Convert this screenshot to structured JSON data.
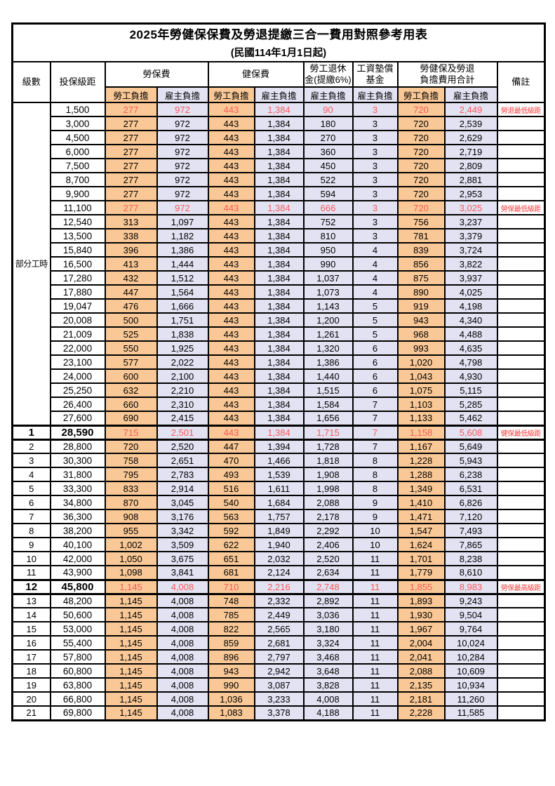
{
  "title": "2025年勞健保保費及勞退提繳三合一費用對照參考用表",
  "subtitle": "(民國114年1月1日起)",
  "header": {
    "level": "級數",
    "bracket": "投保級距",
    "labor_group": "勞保費",
    "health_group": "健保費",
    "pension_line1": "勞工退休",
    "pension_line2": "金(提繳6%)",
    "wage_fund_line1": "工資墊償",
    "wage_fund_line2": "基金",
    "total_line1": "勞健保及勞退",
    "total_line2": "負擔費用合計",
    "remark": "備註",
    "employee": "勞工負擔",
    "employer": "雇主負擔"
  },
  "part_time_label": "部分工時",
  "part_time_span": 23,
  "colors": {
    "employee_bg": "#F9C896",
    "employer_bg": "#E3E2F3",
    "highlight_value_text": "#F75B57",
    "remark_text": "#FA3B3B",
    "border": "#000000"
  },
  "rows": [
    {
      "level": "",
      "bracket": "1,500",
      "values": [
        "277",
        "972",
        "443",
        "1,384",
        "90",
        "3",
        "720",
        "2,449"
      ],
      "remark": "勞退最低級距",
      "red": true,
      "key": false
    },
    {
      "level": "",
      "bracket": "3,000",
      "values": [
        "277",
        "972",
        "443",
        "1,384",
        "180",
        "3",
        "720",
        "2,539"
      ],
      "remark": "",
      "red": false,
      "key": false
    },
    {
      "level": "",
      "bracket": "4,500",
      "values": [
        "277",
        "972",
        "443",
        "1,384",
        "270",
        "3",
        "720",
        "2,629"
      ],
      "remark": "",
      "red": false,
      "key": false
    },
    {
      "level": "",
      "bracket": "6,000",
      "values": [
        "277",
        "972",
        "443",
        "1,384",
        "360",
        "3",
        "720",
        "2,719"
      ],
      "remark": "",
      "red": false,
      "key": false
    },
    {
      "level": "",
      "bracket": "7,500",
      "values": [
        "277",
        "972",
        "443",
        "1,384",
        "450",
        "3",
        "720",
        "2,809"
      ],
      "remark": "",
      "red": false,
      "key": false
    },
    {
      "level": "",
      "bracket": "8,700",
      "values": [
        "277",
        "972",
        "443",
        "1,384",
        "522",
        "3",
        "720",
        "2,881"
      ],
      "remark": "",
      "red": false,
      "key": false
    },
    {
      "level": "",
      "bracket": "9,900",
      "values": [
        "277",
        "972",
        "443",
        "1,384",
        "594",
        "3",
        "720",
        "2,953"
      ],
      "remark": "",
      "red": false,
      "key": false
    },
    {
      "level": "",
      "bracket": "11,100",
      "values": [
        "277",
        "972",
        "443",
        "1,384",
        "666",
        "3",
        "720",
        "3,025"
      ],
      "remark": "勞保最低級距",
      "red": true,
      "key": false
    },
    {
      "level": "",
      "bracket": "12,540",
      "values": [
        "313",
        "1,097",
        "443",
        "1,384",
        "752",
        "3",
        "756",
        "3,237"
      ],
      "remark": "",
      "red": false,
      "key": false
    },
    {
      "level": "",
      "bracket": "13,500",
      "values": [
        "338",
        "1,182",
        "443",
        "1,384",
        "810",
        "3",
        "781",
        "3,379"
      ],
      "remark": "",
      "red": false,
      "key": false
    },
    {
      "level": "",
      "bracket": "15,840",
      "values": [
        "396",
        "1,386",
        "443",
        "1,384",
        "950",
        "4",
        "839",
        "3,724"
      ],
      "remark": "",
      "red": false,
      "key": false
    },
    {
      "level": "",
      "bracket": "16,500",
      "values": [
        "413",
        "1,444",
        "443",
        "1,384",
        "990",
        "4",
        "856",
        "3,822"
      ],
      "remark": "",
      "red": false,
      "key": false
    },
    {
      "level": "",
      "bracket": "17,280",
      "values": [
        "432",
        "1,512",
        "443",
        "1,384",
        "1,037",
        "4",
        "875",
        "3,937"
      ],
      "remark": "",
      "red": false,
      "key": false
    },
    {
      "level": "",
      "bracket": "17,880",
      "values": [
        "447",
        "1,564",
        "443",
        "1,384",
        "1,073",
        "4",
        "890",
        "4,025"
      ],
      "remark": "",
      "red": false,
      "key": false
    },
    {
      "level": "",
      "bracket": "19,047",
      "values": [
        "476",
        "1,666",
        "443",
        "1,384",
        "1,143",
        "5",
        "919",
        "4,198"
      ],
      "remark": "",
      "red": false,
      "key": false
    },
    {
      "level": "",
      "bracket": "20,008",
      "values": [
        "500",
        "1,751",
        "443",
        "1,384",
        "1,200",
        "5",
        "943",
        "4,340"
      ],
      "remark": "",
      "red": false,
      "key": false
    },
    {
      "level": "",
      "bracket": "21,009",
      "values": [
        "525",
        "1,838",
        "443",
        "1,384",
        "1,261",
        "5",
        "968",
        "4,488"
      ],
      "remark": "",
      "red": false,
      "key": false
    },
    {
      "level": "",
      "bracket": "22,000",
      "values": [
        "550",
        "1,925",
        "443",
        "1,384",
        "1,320",
        "6",
        "993",
        "4,635"
      ],
      "remark": "",
      "red": false,
      "key": false
    },
    {
      "level": "",
      "bracket": "23,100",
      "values": [
        "577",
        "2,022",
        "443",
        "1,384",
        "1,386",
        "6",
        "1,020",
        "4,798"
      ],
      "remark": "",
      "red": false,
      "key": false
    },
    {
      "level": "",
      "bracket": "24,000",
      "values": [
        "600",
        "2,100",
        "443",
        "1,384",
        "1,440",
        "6",
        "1,043",
        "4,930"
      ],
      "remark": "",
      "red": false,
      "key": false
    },
    {
      "level": "",
      "bracket": "25,250",
      "values": [
        "632",
        "2,210",
        "443",
        "1,384",
        "1,515",
        "6",
        "1,075",
        "5,115"
      ],
      "remark": "",
      "red": false,
      "key": false
    },
    {
      "level": "",
      "bracket": "26,400",
      "values": [
        "660",
        "2,310",
        "443",
        "1,384",
        "1,584",
        "7",
        "1,103",
        "5,285"
      ],
      "remark": "",
      "red": false,
      "key": false
    },
    {
      "level": "",
      "bracket": "27,600",
      "values": [
        "690",
        "2,415",
        "443",
        "1,384",
        "1,656",
        "7",
        "1,133",
        "5,462"
      ],
      "remark": "",
      "red": false,
      "key": false
    },
    {
      "level": "1",
      "bracket": "28,590",
      "values": [
        "715",
        "2,501",
        "443",
        "1,384",
        "1,715",
        "7",
        "1,158",
        "5,608"
      ],
      "remark": "健保最低級距",
      "red": true,
      "key": true
    },
    {
      "level": "2",
      "bracket": "28,800",
      "values": [
        "720",
        "2,520",
        "447",
        "1,394",
        "1,728",
        "7",
        "1,167",
        "5,649"
      ],
      "remark": "",
      "red": false,
      "key": false
    },
    {
      "level": "3",
      "bracket": "30,300",
      "values": [
        "758",
        "2,651",
        "470",
        "1,466",
        "1,818",
        "8",
        "1,228",
        "5,943"
      ],
      "remark": "",
      "red": false,
      "key": false
    },
    {
      "level": "4",
      "bracket": "31,800",
      "values": [
        "795",
        "2,783",
        "493",
        "1,539",
        "1,908",
        "8",
        "1,288",
        "6,238"
      ],
      "remark": "",
      "red": false,
      "key": false
    },
    {
      "level": "5",
      "bracket": "33,300",
      "values": [
        "833",
        "2,914",
        "516",
        "1,611",
        "1,998",
        "8",
        "1,349",
        "6,531"
      ],
      "remark": "",
      "red": false,
      "key": false
    },
    {
      "level": "6",
      "bracket": "34,800",
      "values": [
        "870",
        "3,045",
        "540",
        "1,684",
        "2,088",
        "9",
        "1,410",
        "6,826"
      ],
      "remark": "",
      "red": false,
      "key": false
    },
    {
      "level": "7",
      "bracket": "36,300",
      "values": [
        "908",
        "3,176",
        "563",
        "1,757",
        "2,178",
        "9",
        "1,471",
        "7,120"
      ],
      "remark": "",
      "red": false,
      "key": false
    },
    {
      "level": "8",
      "bracket": "38,200",
      "values": [
        "955",
        "3,342",
        "592",
        "1,849",
        "2,292",
        "10",
        "1,547",
        "7,493"
      ],
      "remark": "",
      "red": false,
      "key": false
    },
    {
      "level": "9",
      "bracket": "40,100",
      "values": [
        "1,002",
        "3,509",
        "622",
        "1,940",
        "2,406",
        "10",
        "1,624",
        "7,865"
      ],
      "remark": "",
      "red": false,
      "key": false
    },
    {
      "level": "10",
      "bracket": "42,000",
      "values": [
        "1,050",
        "3,675",
        "651",
        "2,032",
        "2,520",
        "11",
        "1,701",
        "8,238"
      ],
      "remark": "",
      "red": false,
      "key": false
    },
    {
      "level": "11",
      "bracket": "43,900",
      "values": [
        "1,098",
        "3,841",
        "681",
        "2,124",
        "2,634",
        "11",
        "1,779",
        "8,610"
      ],
      "remark": "",
      "red": false,
      "key": false
    },
    {
      "level": "12",
      "bracket": "45,800",
      "values": [
        "1,145",
        "4,008",
        "710",
        "2,216",
        "2,748",
        "11",
        "1,855",
        "8,983"
      ],
      "remark": "勞保最高級距",
      "red": true,
      "key": true
    },
    {
      "level": "13",
      "bracket": "48,200",
      "values": [
        "1,145",
        "4,008",
        "748",
        "2,332",
        "2,892",
        "11",
        "1,893",
        "9,243"
      ],
      "remark": "",
      "red": false,
      "key": false
    },
    {
      "level": "14",
      "bracket": "50,600",
      "values": [
        "1,145",
        "4,008",
        "785",
        "2,449",
        "3,036",
        "11",
        "1,930",
        "9,504"
      ],
      "remark": "",
      "red": false,
      "key": false
    },
    {
      "level": "15",
      "bracket": "53,000",
      "values": [
        "1,145",
        "4,008",
        "822",
        "2,565",
        "3,180",
        "11",
        "1,967",
        "9,764"
      ],
      "remark": "",
      "red": false,
      "key": false
    },
    {
      "level": "16",
      "bracket": "55,400",
      "values": [
        "1,145",
        "4,008",
        "859",
        "2,681",
        "3,324",
        "11",
        "2,004",
        "10,024"
      ],
      "remark": "",
      "red": false,
      "key": false
    },
    {
      "level": "17",
      "bracket": "57,800",
      "values": [
        "1,145",
        "4,008",
        "896",
        "2,797",
        "3,468",
        "11",
        "2,041",
        "10,284"
      ],
      "remark": "",
      "red": false,
      "key": false
    },
    {
      "level": "18",
      "bracket": "60,800",
      "values": [
        "1,145",
        "4,008",
        "943",
        "2,942",
        "3,648",
        "11",
        "2,088",
        "10,609"
      ],
      "remark": "",
      "red": false,
      "key": false
    },
    {
      "level": "19",
      "bracket": "63,800",
      "values": [
        "1,145",
        "4,008",
        "990",
        "3,087",
        "3,828",
        "11",
        "2,135",
        "10,934"
      ],
      "remark": "",
      "red": false,
      "key": false
    },
    {
      "level": "20",
      "bracket": "66,800",
      "values": [
        "1,145",
        "4,008",
        "1,036",
        "3,233",
        "4,008",
        "11",
        "2,181",
        "11,260"
      ],
      "remark": "",
      "red": false,
      "key": false
    },
    {
      "level": "21",
      "bracket": "69,800",
      "values": [
        "1,145",
        "4,008",
        "1,083",
        "3,378",
        "4,188",
        "11",
        "2,228",
        "11,585"
      ],
      "remark": "",
      "red": false,
      "key": false
    }
  ]
}
